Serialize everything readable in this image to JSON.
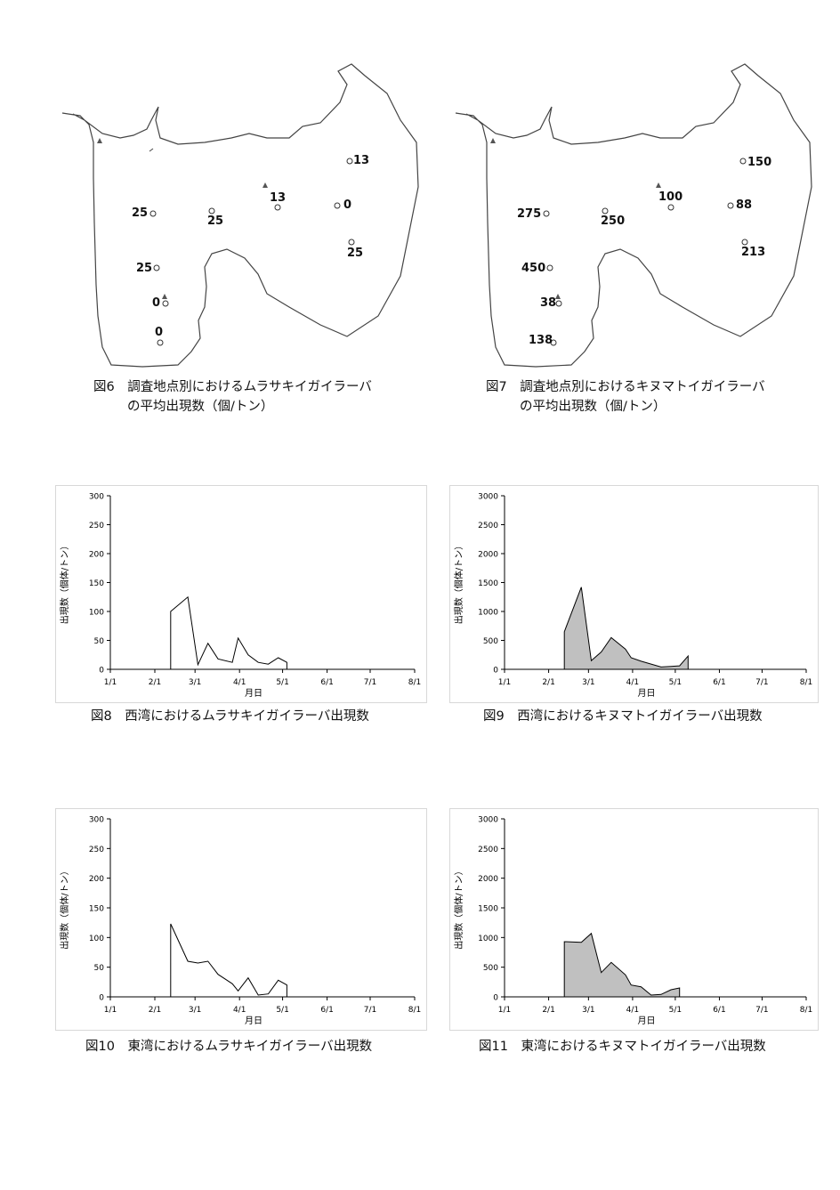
{
  "figures": {
    "fig6": {
      "caption_line1": "図6　調査地点別におけるムラサキイガイラーバ",
      "caption_line2": "の平均出現数（個/トン）",
      "sites": [
        "13",
        "13",
        "0",
        "25",
        "25",
        "25",
        "25",
        "0",
        "0"
      ]
    },
    "fig7": {
      "caption_line1": "図7　調査地点別におけるキヌマトイガイラーバ",
      "caption_line2": "の平均出現数（個/トン）",
      "sites": [
        "150",
        "100",
        "88",
        "213",
        "275",
        "250",
        "450",
        "38",
        "138"
      ]
    },
    "fig8": {
      "caption": "図8　西湾におけるムラサキイガイラーバ出現数"
    },
    "fig9": {
      "caption": "図9　西湾におけるキヌマトイガイラーバ出現数"
    },
    "fig10": {
      "caption": "図10　東湾におけるムラサキイガイラーバ出現数"
    },
    "fig11": {
      "caption": "図11　東湾におけるキヌマトイガイラーバ出現数"
    }
  },
  "chart_data": [
    {
      "id": "fig8",
      "type": "line",
      "xlabel": "月日",
      "ylabel": "出現数（個体/トン）",
      "x_ticks": [
        "1/1",
        "2/1",
        "3/1",
        "4/1",
        "5/1",
        "6/1",
        "7/1",
        "8/1"
      ],
      "y_ticks": [
        "0",
        "50",
        "100",
        "150",
        "200",
        "250",
        "300"
      ],
      "ylim": [
        0,
        300
      ],
      "fill": false,
      "points": [
        [
          "2/12",
          0
        ],
        [
          "2/12",
          100
        ],
        [
          "2/24",
          125
        ],
        [
          "3/3",
          8
        ],
        [
          "3/10",
          45
        ],
        [
          "3/17",
          18
        ],
        [
          "3/27",
          12
        ],
        [
          "3/31",
          54
        ],
        [
          "4/7",
          25
        ],
        [
          "4/14",
          12
        ],
        [
          "4/21",
          9
        ],
        [
          "4/28",
          20
        ],
        [
          "5/4",
          12
        ],
        [
          "5/4",
          0
        ]
      ]
    },
    {
      "id": "fig9",
      "type": "area",
      "xlabel": "月日",
      "ylabel": "出現数（個体/トン）",
      "x_ticks": [
        "1/1",
        "2/1",
        "3/1",
        "4/1",
        "5/1",
        "6/1",
        "7/1",
        "8/1"
      ],
      "y_ticks": [
        "0",
        "500",
        "1000",
        "1500",
        "2000",
        "2500",
        "3000"
      ],
      "ylim": [
        0,
        3000
      ],
      "fill": true,
      "points": [
        [
          "2/12",
          0
        ],
        [
          "2/12",
          650
        ],
        [
          "2/24",
          1420
        ],
        [
          "3/3",
          150
        ],
        [
          "3/10",
          300
        ],
        [
          "3/17",
          550
        ],
        [
          "3/27",
          350
        ],
        [
          "3/31",
          200
        ],
        [
          "4/7",
          140
        ],
        [
          "4/21",
          40
        ],
        [
          "4/28",
          50
        ],
        [
          "5/4",
          60
        ],
        [
          "5/10",
          230
        ],
        [
          "5/10",
          0
        ]
      ]
    },
    {
      "id": "fig10",
      "type": "line",
      "xlabel": "月日",
      "ylabel": "出現数（個体/トン）",
      "x_ticks": [
        "1/1",
        "2/1",
        "3/1",
        "4/1",
        "5/1",
        "6/1",
        "7/1",
        "8/1"
      ],
      "y_ticks": [
        "0",
        "50",
        "100",
        "150",
        "200",
        "250",
        "300"
      ],
      "ylim": [
        0,
        300
      ],
      "fill": false,
      "points": [
        [
          "2/12",
          0
        ],
        [
          "2/12",
          123
        ],
        [
          "2/24",
          60
        ],
        [
          "3/3",
          57
        ],
        [
          "3/10",
          60
        ],
        [
          "3/17",
          38
        ],
        [
          "3/27",
          22
        ],
        [
          "3/31",
          10
        ],
        [
          "4/7",
          32
        ],
        [
          "4/14",
          3
        ],
        [
          "4/21",
          5
        ],
        [
          "4/28",
          28
        ],
        [
          "5/4",
          20
        ],
        [
          "5/4",
          0
        ]
      ]
    },
    {
      "id": "fig11",
      "type": "area",
      "xlabel": "月日",
      "ylabel": "出現数（個体/トン）",
      "x_ticks": [
        "1/1",
        "2/1",
        "3/1",
        "4/1",
        "5/1",
        "6/1",
        "7/1",
        "8/1"
      ],
      "y_ticks": [
        "0",
        "500",
        "1000",
        "1500",
        "2000",
        "2500",
        "3000"
      ],
      "ylim": [
        0,
        3000
      ],
      "fill": true,
      "points": [
        [
          "2/12",
          0
        ],
        [
          "2/12",
          930
        ],
        [
          "2/24",
          920
        ],
        [
          "3/3",
          1070
        ],
        [
          "3/10",
          410
        ],
        [
          "3/17",
          580
        ],
        [
          "3/27",
          370
        ],
        [
          "3/31",
          200
        ],
        [
          "4/7",
          170
        ],
        [
          "4/14",
          30
        ],
        [
          "4/21",
          40
        ],
        [
          "4/28",
          120
        ],
        [
          "5/4",
          150
        ],
        [
          "5/4",
          0
        ]
      ]
    }
  ]
}
